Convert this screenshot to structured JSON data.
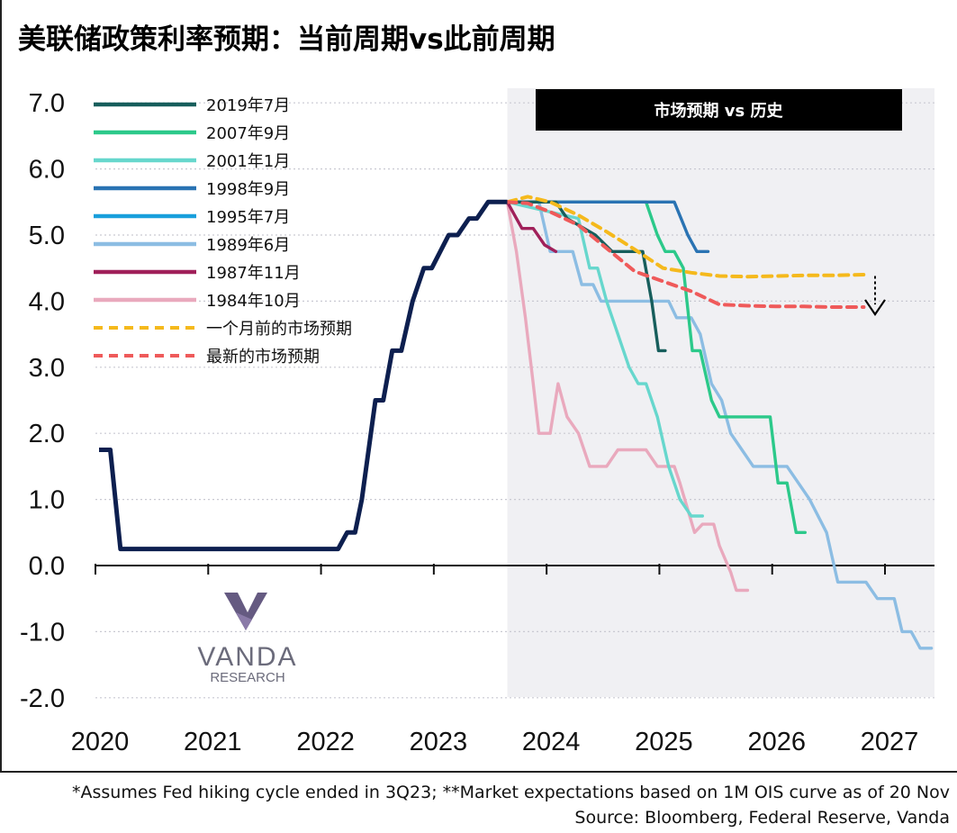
{
  "title": "美联储政策利率预期：当前周期vs此前周期",
  "notes": {
    "assumption": "*Assumes Fed hiking cycle ended in 3Q23; **Market expectations based on 1M OIS curve as of 20 Nov",
    "source": "Source: Bloomberg, Federal Reserve, Vanda"
  },
  "logo": {
    "name": "VANDA",
    "sub": "RESEARCH",
    "color": "#4a3d6b"
  },
  "chart_data": {
    "type": "line",
    "banner": "市场预期 vs 历史",
    "xlim": [
      2020.0,
      2027.45
    ],
    "ylim": [
      -2.0,
      7.0
    ],
    "x_ticks": [
      2020,
      2021,
      2022,
      2023,
      2024,
      2025,
      2026,
      2027
    ],
    "x_tick_labels": [
      "2020",
      "2021",
      "2022",
      "2023",
      "2024",
      "2025",
      "2026",
      "2027"
    ],
    "y_ticks": [
      7,
      6,
      5,
      4,
      3,
      2,
      1,
      0,
      -1,
      -2
    ],
    "y_tick_labels": [
      "7.0",
      "6.0",
      "5.0",
      "4.0",
      "3.0",
      "2.0",
      "1.0",
      "0.0",
      "-1.0",
      "-2.0"
    ],
    "grid": "horizontal dotted",
    "legend": "top-left",
    "shaded_region": {
      "x0": 2023.62,
      "x1": 2027.45,
      "color": "#f0f0f3"
    },
    "main_series": {
      "color": "#0d1f4f",
      "points": [
        [
          2020.0,
          1.75
        ],
        [
          2020.1,
          1.75
        ],
        [
          2020.19,
          0.25
        ],
        [
          2022.12,
          0.25
        ],
        [
          2022.2,
          0.5
        ],
        [
          2022.27,
          0.5
        ],
        [
          2022.33,
          1.0
        ],
        [
          2022.45,
          2.5
        ],
        [
          2022.52,
          2.5
        ],
        [
          2022.6,
          3.25
        ],
        [
          2022.68,
          3.25
        ],
        [
          2022.78,
          4.0
        ],
        [
          2022.88,
          4.5
        ],
        [
          2022.95,
          4.5
        ],
        [
          2023.1,
          5.0
        ],
        [
          2023.18,
          5.0
        ],
        [
          2023.28,
          5.25
        ],
        [
          2023.35,
          5.25
        ],
        [
          2023.45,
          5.5
        ],
        [
          2023.62,
          5.5
        ]
      ]
    },
    "series": [
      {
        "name": "2019年7月",
        "color": "#175e5c",
        "dash": false,
        "points": [
          [
            2023.62,
            5.5
          ],
          [
            2023.95,
            5.5
          ],
          [
            2024.05,
            5.5
          ],
          [
            2024.15,
            5.25
          ],
          [
            2024.4,
            5.0
          ],
          [
            2024.55,
            4.75
          ],
          [
            2024.68,
            4.75
          ],
          [
            2024.82,
            4.75
          ],
          [
            2024.9,
            4.0
          ],
          [
            2024.96,
            3.25
          ],
          [
            2025.02,
            3.25
          ]
        ]
      },
      {
        "name": "2007年9月",
        "color": "#2cc98a",
        "dash": false,
        "points": [
          [
            2023.62,
            5.5
          ],
          [
            2024.85,
            5.5
          ],
          [
            2024.95,
            5.0
          ],
          [
            2025.02,
            4.75
          ],
          [
            2025.1,
            4.75
          ],
          [
            2025.18,
            4.5
          ],
          [
            2025.26,
            3.25
          ],
          [
            2025.33,
            3.25
          ],
          [
            2025.43,
            2.5
          ],
          [
            2025.5,
            2.25
          ],
          [
            2025.95,
            2.25
          ],
          [
            2026.02,
            1.25
          ],
          [
            2026.1,
            1.25
          ],
          [
            2026.18,
            0.5
          ],
          [
            2026.26,
            0.5
          ]
        ]
      },
      {
        "name": "2001年1月",
        "color": "#67d7cd",
        "dash": false,
        "points": [
          [
            2023.62,
            5.5
          ],
          [
            2024.25,
            5.25
          ],
          [
            2024.35,
            4.5
          ],
          [
            2024.42,
            4.5
          ],
          [
            2024.5,
            4.0
          ],
          [
            2024.6,
            3.5
          ],
          [
            2024.7,
            3.0
          ],
          [
            2024.78,
            2.75
          ],
          [
            2024.85,
            2.75
          ],
          [
            2024.95,
            2.25
          ],
          [
            2025.05,
            1.5
          ],
          [
            2025.15,
            1.0
          ],
          [
            2025.25,
            0.75
          ],
          [
            2025.35,
            0.75
          ]
        ]
      },
      {
        "name": "1998年9月",
        "color": "#2a73b3",
        "dash": false,
        "points": [
          [
            2023.62,
            5.5
          ],
          [
            2025.1,
            5.5
          ],
          [
            2025.22,
            5.0
          ],
          [
            2025.3,
            4.75
          ],
          [
            2025.4,
            4.75
          ]
        ]
      },
      {
        "name": "1995年7月",
        "color": "#199fdc",
        "dash": false,
        "points": [
          [
            2023.62,
            5.5
          ],
          [
            2023.95,
            5.5
          ],
          [
            2024.0,
            5.25
          ],
          [
            2024.3,
            5.25
          ],
          [
            2024.4,
            5.0
          ],
          [
            2024.5,
            4.75
          ],
          [
            2024.6,
            4.75
          ]
        ]
      },
      {
        "name": "1989年6月",
        "color": "#8cbde3",
        "dash": false,
        "points": [
          [
            2023.62,
            5.5
          ],
          [
            2023.9,
            5.5
          ],
          [
            2024.0,
            4.75
          ],
          [
            2024.2,
            4.75
          ],
          [
            2024.28,
            4.25
          ],
          [
            2024.38,
            4.25
          ],
          [
            2024.45,
            4.0
          ],
          [
            2025.05,
            4.0
          ],
          [
            2025.12,
            3.75
          ],
          [
            2025.25,
            3.75
          ],
          [
            2025.33,
            3.5
          ],
          [
            2025.43,
            2.75
          ],
          [
            2025.52,
            2.5
          ],
          [
            2025.6,
            2.0
          ],
          [
            2025.7,
            1.75
          ],
          [
            2025.8,
            1.5
          ],
          [
            2025.95,
            1.5
          ],
          [
            2026.1,
            1.5
          ],
          [
            2026.2,
            1.25
          ],
          [
            2026.3,
            1.0
          ],
          [
            2026.45,
            0.5
          ],
          [
            2026.55,
            -0.25
          ],
          [
            2026.8,
            -0.25
          ],
          [
            2026.9,
            -0.5
          ],
          [
            2027.05,
            -0.5
          ],
          [
            2027.12,
            -1.0
          ],
          [
            2027.2,
            -1.0
          ],
          [
            2027.28,
            -1.25
          ],
          [
            2027.38,
            -1.25
          ]
        ]
      },
      {
        "name": "1987年11月",
        "color": "#a0205a",
        "dash": false,
        "points": [
          [
            2023.62,
            5.5
          ],
          [
            2023.7,
            5.25
          ],
          [
            2023.75,
            5.1
          ],
          [
            2023.85,
            5.1
          ],
          [
            2023.95,
            4.85
          ],
          [
            2024.05,
            4.75
          ]
        ]
      },
      {
        "name": "1984年10月",
        "color": "#e9a9bd",
        "dash": false,
        "points": [
          [
            2023.62,
            5.5
          ],
          [
            2023.7,
            4.75
          ],
          [
            2023.78,
            3.75
          ],
          [
            2023.85,
            2.75
          ],
          [
            2023.9,
            2.0
          ],
          [
            2024.0,
            2.0
          ],
          [
            2024.07,
            2.75
          ],
          [
            2024.15,
            2.25
          ],
          [
            2024.25,
            2.0
          ],
          [
            2024.35,
            1.5
          ],
          [
            2024.5,
            1.5
          ],
          [
            2024.6,
            1.75
          ],
          [
            2024.85,
            1.75
          ],
          [
            2024.95,
            1.5
          ],
          [
            2025.1,
            1.5
          ],
          [
            2025.15,
            1.25
          ],
          [
            2025.28,
            0.5
          ],
          [
            2025.35,
            0.625
          ],
          [
            2025.45,
            0.625
          ],
          [
            2025.5,
            0.3
          ],
          [
            2025.6,
            -0.1
          ],
          [
            2025.65,
            -0.375
          ],
          [
            2025.75,
            -0.375
          ]
        ]
      },
      {
        "name": "一个月前的市场预期",
        "color": "#f5b91c",
        "dash": true,
        "points": [
          [
            2023.62,
            5.5
          ],
          [
            2023.8,
            5.58
          ],
          [
            2024.0,
            5.5
          ],
          [
            2024.25,
            5.3
          ],
          [
            2024.5,
            5.05
          ],
          [
            2024.75,
            4.78
          ],
          [
            2025.0,
            4.5
          ],
          [
            2025.25,
            4.43
          ],
          [
            2025.5,
            4.38
          ],
          [
            2025.75,
            4.37
          ],
          [
            2026.0,
            4.38
          ],
          [
            2026.25,
            4.39
          ],
          [
            2026.5,
            4.39
          ],
          [
            2026.78,
            4.4
          ]
        ]
      },
      {
        "name": "最新的市场预期",
        "color": "#ef5a5a",
        "dash": true,
        "points": [
          [
            2023.62,
            5.5
          ],
          [
            2023.8,
            5.48
          ],
          [
            2024.0,
            5.35
          ],
          [
            2024.25,
            5.15
          ],
          [
            2024.5,
            4.8
          ],
          [
            2024.75,
            4.45
          ],
          [
            2025.0,
            4.3
          ],
          [
            2025.25,
            4.15
          ],
          [
            2025.5,
            3.95
          ],
          [
            2025.75,
            3.93
          ],
          [
            2026.0,
            3.92
          ],
          [
            2026.25,
            3.92
          ],
          [
            2026.5,
            3.91
          ],
          [
            2026.78,
            3.91
          ]
        ]
      }
    ]
  }
}
